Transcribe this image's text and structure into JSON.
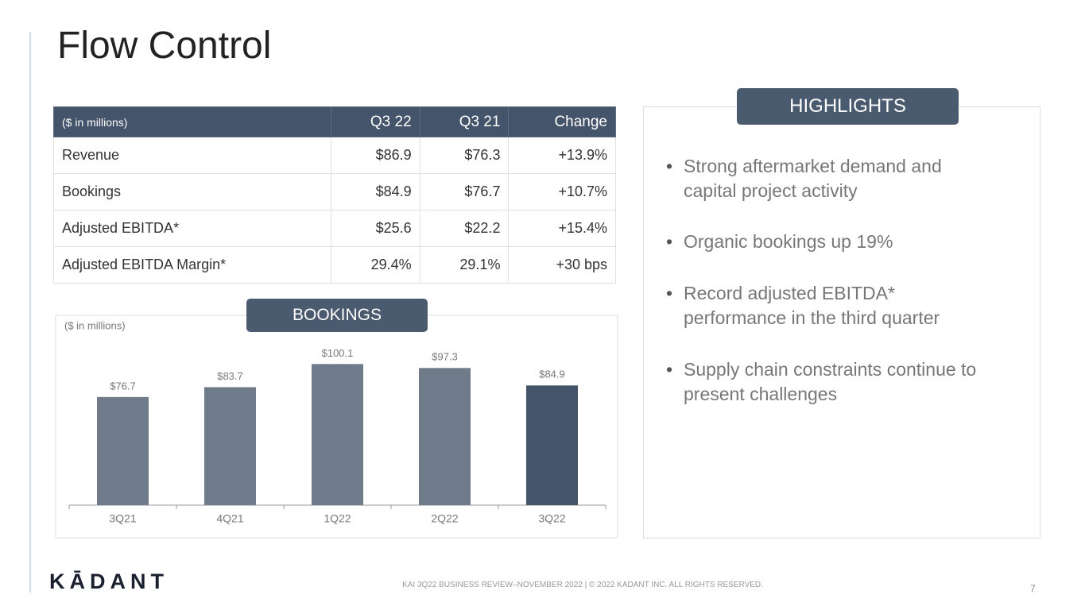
{
  "header": {
    "title": "Flow Control"
  },
  "table": {
    "header": [
      "($ in millions)",
      "Q3 22",
      "Q3 21",
      "Change"
    ],
    "rows": [
      [
        "Revenue",
        "$86.9",
        "$76.3",
        "+13.9%"
      ],
      [
        "Bookings",
        "$84.9",
        "$76.7",
        "+10.7%"
      ],
      [
        "Adjusted EBITDA*",
        "$25.6",
        "$22.2",
        "+15.4%"
      ],
      [
        "Adjusted EBITDA Margin*",
        "29.4%",
        "29.1%",
        "+30 bps"
      ]
    ]
  },
  "chart_data": {
    "type": "bar",
    "title": "BOOKINGS",
    "subtitle": "($ in millions)",
    "categories": [
      "3Q21",
      "4Q21",
      "1Q22",
      "2Q22",
      "3Q22"
    ],
    "values": [
      76.7,
      83.7,
      100.1,
      97.3,
      84.9
    ],
    "value_labels": [
      "$76.7",
      "$83.7",
      "$100.1",
      "$97.3",
      "$84.9"
    ],
    "colors": [
      "#6f7b8b",
      "#6f7b8b",
      "#6f7b8b",
      "#6f7b8b",
      "#44546a"
    ],
    "ylim": [
      0,
      120
    ]
  },
  "highlights": {
    "title": "HIGHLIGHTS",
    "bullets": [
      [
        "Strong aftermarket demand and",
        "capital project activity"
      ],
      [
        "Organic bookings up 19%"
      ],
      [
        "Record adjusted EBITDA*",
        "performance in the third quarter"
      ],
      [
        "Supply chain constraints continue to",
        "present challenges"
      ]
    ]
  },
  "footer": {
    "logo": "KĀDANT",
    "note": "KAI 3Q22 BUSINESS REVIEW–NOVEMBER 2022 | © 2022 KADANT INC. ALL RIGHTS RESERVED.",
    "page": "7"
  }
}
